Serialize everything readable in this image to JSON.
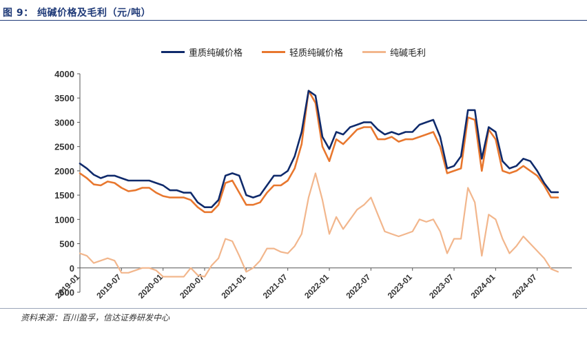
{
  "figure": {
    "title": "图 9：  纯碱价格及毛利（元/吨）",
    "source": "资料来源：百川盈孚，信达证券研发中心"
  },
  "chart_data": {
    "type": "line",
    "title": "",
    "xlabel": "",
    "ylabel": "",
    "ylim": [
      -500,
      4000
    ],
    "yticks": [
      -500,
      0,
      500,
      1000,
      1500,
      2000,
      2500,
      3000,
      3500,
      4000
    ],
    "ytick_labels": [
      "-500",
      "0",
      "500",
      "1000",
      "1500",
      "2000",
      "2500",
      "3000",
      "3500",
      "4000"
    ],
    "xlim": [
      "2019-01",
      "2024-12"
    ],
    "xticks": [
      "2019-01",
      "2019-07",
      "2020-01",
      "2020-07",
      "2021-01",
      "2021-07",
      "2022-01",
      "2022-07",
      "2023-01",
      "2023-07",
      "2024-01",
      "2024-07"
    ],
    "grid": false,
    "legend_position": "top-center",
    "series": [
      {
        "name": "重质纯碱价格",
        "color": "#0f2a6b",
        "points": [
          [
            "2019-01",
            2150
          ],
          [
            "2019-02",
            2050
          ],
          [
            "2019-03",
            1920
          ],
          [
            "2019-04",
            1850
          ],
          [
            "2019-05",
            1900
          ],
          [
            "2019-06",
            1900
          ],
          [
            "2019-07",
            1850
          ],
          [
            "2019-08",
            1800
          ],
          [
            "2019-09",
            1800
          ],
          [
            "2019-10",
            1800
          ],
          [
            "2019-11",
            1800
          ],
          [
            "2019-12",
            1750
          ],
          [
            "2020-01",
            1700
          ],
          [
            "2020-02",
            1600
          ],
          [
            "2020-03",
            1600
          ],
          [
            "2020-04",
            1550
          ],
          [
            "2020-05",
            1550
          ],
          [
            "2020-06",
            1350
          ],
          [
            "2020-07",
            1250
          ],
          [
            "2020-08",
            1250
          ],
          [
            "2020-09",
            1400
          ],
          [
            "2020-10",
            1900
          ],
          [
            "2020-11",
            1950
          ],
          [
            "2020-12",
            1900
          ],
          [
            "2021-01",
            1500
          ],
          [
            "2021-02",
            1450
          ],
          [
            "2021-03",
            1500
          ],
          [
            "2021-04",
            1700
          ],
          [
            "2021-05",
            1900
          ],
          [
            "2021-06",
            1900
          ],
          [
            "2021-07",
            2000
          ],
          [
            "2021-08",
            2300
          ],
          [
            "2021-09",
            2800
          ],
          [
            "2021-10",
            3650
          ],
          [
            "2021-11",
            3550
          ],
          [
            "2021-12",
            2700
          ],
          [
            "2022-01",
            2450
          ],
          [
            "2022-02",
            2800
          ],
          [
            "2022-03",
            2750
          ],
          [
            "2022-04",
            2900
          ],
          [
            "2022-05",
            2950
          ],
          [
            "2022-06",
            3000
          ],
          [
            "2022-07",
            3000
          ],
          [
            "2022-08",
            2850
          ],
          [
            "2022-09",
            2750
          ],
          [
            "2022-10",
            2800
          ],
          [
            "2022-11",
            2750
          ],
          [
            "2022-12",
            2800
          ],
          [
            "2023-01",
            2800
          ],
          [
            "2023-02",
            2950
          ],
          [
            "2023-03",
            3000
          ],
          [
            "2023-04",
            3050
          ],
          [
            "2023-05",
            2700
          ],
          [
            "2023-06",
            2050
          ],
          [
            "2023-07",
            2100
          ],
          [
            "2023-08",
            2300
          ],
          [
            "2023-09",
            3250
          ],
          [
            "2023-10",
            3250
          ],
          [
            "2023-11",
            2250
          ],
          [
            "2023-12",
            2900
          ],
          [
            "2024-01",
            2800
          ],
          [
            "2024-02",
            2200
          ],
          [
            "2024-03",
            2050
          ],
          [
            "2024-04",
            2100
          ],
          [
            "2024-05",
            2250
          ],
          [
            "2024-06",
            2200
          ],
          [
            "2024-07",
            2000
          ],
          [
            "2024-08",
            1750
          ],
          [
            "2024-09",
            1560
          ],
          [
            "2024-10",
            1560
          ]
        ]
      },
      {
        "name": "轻质纯碱价格",
        "color": "#e8772e",
        "points": [
          [
            "2019-01",
            1950
          ],
          [
            "2019-02",
            1850
          ],
          [
            "2019-03",
            1720
          ],
          [
            "2019-04",
            1700
          ],
          [
            "2019-05",
            1780
          ],
          [
            "2019-06",
            1750
          ],
          [
            "2019-07",
            1650
          ],
          [
            "2019-08",
            1580
          ],
          [
            "2019-09",
            1600
          ],
          [
            "2019-10",
            1650
          ],
          [
            "2019-11",
            1650
          ],
          [
            "2019-12",
            1550
          ],
          [
            "2020-01",
            1480
          ],
          [
            "2020-02",
            1450
          ],
          [
            "2020-03",
            1450
          ],
          [
            "2020-04",
            1450
          ],
          [
            "2020-05",
            1400
          ],
          [
            "2020-06",
            1250
          ],
          [
            "2020-07",
            1150
          ],
          [
            "2020-08",
            1150
          ],
          [
            "2020-09",
            1300
          ],
          [
            "2020-10",
            1750
          ],
          [
            "2020-11",
            1800
          ],
          [
            "2020-12",
            1550
          ],
          [
            "2021-01",
            1300
          ],
          [
            "2021-02",
            1300
          ],
          [
            "2021-03",
            1350
          ],
          [
            "2021-04",
            1550
          ],
          [
            "2021-05",
            1700
          ],
          [
            "2021-06",
            1700
          ],
          [
            "2021-07",
            1800
          ],
          [
            "2021-08",
            2050
          ],
          [
            "2021-09",
            2550
          ],
          [
            "2021-10",
            3650
          ],
          [
            "2021-11",
            3400
          ],
          [
            "2021-12",
            2500
          ],
          [
            "2022-01",
            2200
          ],
          [
            "2022-02",
            2650
          ],
          [
            "2022-03",
            2550
          ],
          [
            "2022-04",
            2700
          ],
          [
            "2022-05",
            2850
          ],
          [
            "2022-06",
            2900
          ],
          [
            "2022-07",
            2900
          ],
          [
            "2022-08",
            2650
          ],
          [
            "2022-09",
            2650
          ],
          [
            "2022-10",
            2700
          ],
          [
            "2022-11",
            2600
          ],
          [
            "2022-12",
            2650
          ],
          [
            "2023-01",
            2650
          ],
          [
            "2023-02",
            2700
          ],
          [
            "2023-03",
            2750
          ],
          [
            "2023-04",
            2800
          ],
          [
            "2023-05",
            2500
          ],
          [
            "2023-06",
            1950
          ],
          [
            "2023-07",
            2000
          ],
          [
            "2023-08",
            2050
          ],
          [
            "2023-09",
            3100
          ],
          [
            "2023-10",
            3050
          ],
          [
            "2023-11",
            2000
          ],
          [
            "2023-12",
            2850
          ],
          [
            "2024-01",
            2650
          ],
          [
            "2024-02",
            2000
          ],
          [
            "2024-03",
            1950
          ],
          [
            "2024-04",
            2000
          ],
          [
            "2024-05",
            2100
          ],
          [
            "2024-06",
            2000
          ],
          [
            "2024-07",
            1900
          ],
          [
            "2024-08",
            1700
          ],
          [
            "2024-09",
            1450
          ],
          [
            "2024-10",
            1450
          ]
        ]
      },
      {
        "name": "纯碱毛利",
        "color": "#f2b68c",
        "points": [
          [
            "2019-01",
            300
          ],
          [
            "2019-02",
            250
          ],
          [
            "2019-03",
            100
          ],
          [
            "2019-04",
            150
          ],
          [
            "2019-05",
            200
          ],
          [
            "2019-06",
            150
          ],
          [
            "2019-07",
            -100
          ],
          [
            "2019-08",
            -100
          ],
          [
            "2019-09",
            -50
          ],
          [
            "2019-10",
            0
          ],
          [
            "2019-11",
            0
          ],
          [
            "2019-12",
            -50
          ],
          [
            "2020-01",
            -180
          ],
          [
            "2020-02",
            -180
          ],
          [
            "2020-03",
            -180
          ],
          [
            "2020-04",
            -180
          ],
          [
            "2020-05",
            0
          ],
          [
            "2020-06",
            -150
          ],
          [
            "2020-07",
            -180
          ],
          [
            "2020-08",
            50
          ],
          [
            "2020-09",
            200
          ],
          [
            "2020-10",
            600
          ],
          [
            "2020-11",
            550
          ],
          [
            "2020-12",
            250
          ],
          [
            "2021-01",
            -80
          ],
          [
            "2021-02",
            0
          ],
          [
            "2021-03",
            150
          ],
          [
            "2021-04",
            400
          ],
          [
            "2021-05",
            400
          ],
          [
            "2021-06",
            330
          ],
          [
            "2021-07",
            300
          ],
          [
            "2021-08",
            450
          ],
          [
            "2021-09",
            700
          ],
          [
            "2021-10",
            1450
          ],
          [
            "2021-11",
            1950
          ],
          [
            "2021-12",
            1400
          ],
          [
            "2022-01",
            700
          ],
          [
            "2022-02",
            1050
          ],
          [
            "2022-03",
            800
          ],
          [
            "2022-04",
            1000
          ],
          [
            "2022-05",
            1200
          ],
          [
            "2022-06",
            1300
          ],
          [
            "2022-07",
            1450
          ],
          [
            "2022-08",
            1100
          ],
          [
            "2022-09",
            750
          ],
          [
            "2022-10",
            700
          ],
          [
            "2022-11",
            650
          ],
          [
            "2022-12",
            700
          ],
          [
            "2023-01",
            750
          ],
          [
            "2023-02",
            1000
          ],
          [
            "2023-03",
            950
          ],
          [
            "2023-04",
            1000
          ],
          [
            "2023-05",
            750
          ],
          [
            "2023-06",
            300
          ],
          [
            "2023-07",
            600
          ],
          [
            "2023-08",
            600
          ],
          [
            "2023-09",
            1650
          ],
          [
            "2023-10",
            1350
          ],
          [
            "2023-11",
            250
          ],
          [
            "2023-12",
            1100
          ],
          [
            "2024-01",
            1000
          ],
          [
            "2024-02",
            600
          ],
          [
            "2024-03",
            300
          ],
          [
            "2024-04",
            450
          ],
          [
            "2024-05",
            650
          ],
          [
            "2024-06",
            500
          ],
          [
            "2024-07",
            350
          ],
          [
            "2024-08",
            200
          ],
          [
            "2024-09",
            -20
          ],
          [
            "2024-10",
            -80
          ]
        ]
      }
    ]
  }
}
